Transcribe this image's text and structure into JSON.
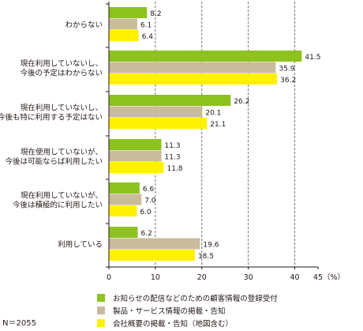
{
  "chart_data": {
    "type": "bar",
    "orientation": "horizontal",
    "categories": [
      [
        "わからない"
      ],
      [
        "現在利用していないし、",
        "今後の予定はわからない"
      ],
      [
        "現在利用していないし、",
        "今後も特に利用する予定はない"
      ],
      [
        "現在使用していないが、",
        "今後は可能ならば利用したい"
      ],
      [
        "現在利用していないが、",
        "今後は積極的に利用したい"
      ],
      [
        "利用している"
      ]
    ],
    "series": [
      {
        "name": "お知らせの配信などのための顧客情報の登録受付",
        "color": "#8dc21f",
        "values": [
          8.2,
          41.5,
          26.2,
          11.3,
          6.6,
          6.2
        ],
        "labels": [
          "8.2",
          "41.5",
          "26.2",
          "11.3",
          "6.6",
          "6.2"
        ]
      },
      {
        "name": "製品・サービス情報の掲載・告知",
        "color": "#c9bc9c",
        "values": [
          6.1,
          35.9,
          20.1,
          11.3,
          7.0,
          19.6
        ],
        "labels": [
          "6.1",
          "35.9",
          "20.1",
          "11.3",
          "7.0",
          "19.6"
        ]
      },
      {
        "name": "会社概要の掲載・告知（地図含む）",
        "color": "#fff100",
        "values": [
          6.4,
          36.2,
          21.1,
          11.8,
          6.0,
          18.5
        ],
        "labels": [
          "6.4",
          "36.2",
          "21.1",
          "11.8",
          "6.0",
          "18.5"
        ]
      }
    ],
    "xlim": [
      0,
      45
    ],
    "ticks": [
      0,
      10,
      20,
      30,
      40,
      45
    ],
    "tick_labels": [
      "0",
      "10",
      "20",
      "30",
      "40",
      "45"
    ],
    "unit": "（%）",
    "grid": "dashed vertical",
    "legend_position": "bottom"
  },
  "note": "N＝2055"
}
